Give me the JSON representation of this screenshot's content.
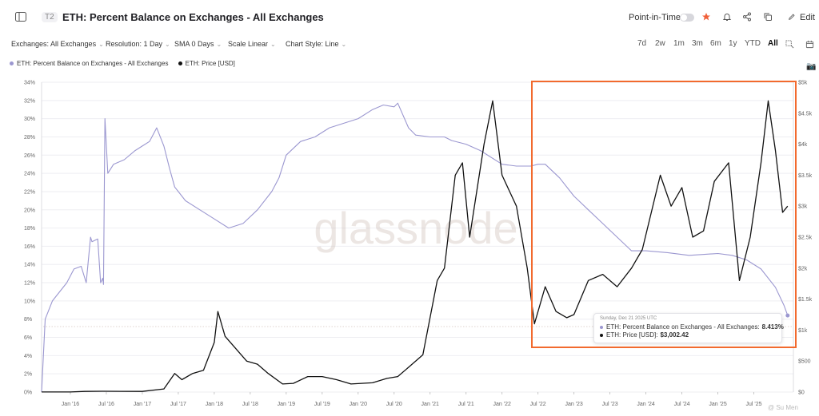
{
  "header": {
    "tier_tag": "T2",
    "title": "ETH: Percent Balance on Exchanges - All Exchanges",
    "point_in_time_label": "Point-in-Time",
    "edit_label": "Edit"
  },
  "filters": [
    {
      "label": "Exchanges: All Exchanges"
    },
    {
      "label": "Resolution: 1 Day"
    },
    {
      "label": "SMA 0 Days"
    },
    {
      "label": "Scale Linear"
    },
    {
      "label": "Chart Style: Line"
    }
  ],
  "ranges": [
    "7d",
    "2w",
    "1m",
    "3m",
    "6m",
    "1y",
    "YTD",
    "All"
  ],
  "active_range": "All",
  "watermark": "glassnode",
  "corner_watermark": "@ Su Men",
  "tooltip": {
    "date": "Sunday, Dec 21 2025 UTC",
    "row1_label": "ETH: Percent Balance on Exchanges - All Exchanges:",
    "row1_value": "8.413%",
    "row2_label": "ETH: Price [USD]:",
    "row2_value": "$3,002.42"
  },
  "colors": {
    "balance": "#9b97d0",
    "price": "#111111",
    "highlight": "#f26a2e",
    "star": "#f0603a"
  },
  "chart_data": {
    "type": "line",
    "legend_position": "top-left",
    "grid": "horizontal",
    "xlabels": [
      "Jan '16",
      "Jul '16",
      "Jan '17",
      "Jul '17",
      "Jan '18",
      "Jul '18",
      "Jan '19",
      "Jul '19",
      "Jan '20",
      "Jul '20",
      "Jan '21",
      "Jul '21",
      "Jan '22",
      "Jul '22",
      "Jan '23",
      "Jul '23",
      "Jan '24",
      "Jul '24",
      "Jan '25",
      "Jul '25"
    ],
    "xlim": [
      2015.6,
      2026.05
    ],
    "y_left": {
      "ticks": [
        "0%",
        "2%",
        "4%",
        "6%",
        "8%",
        "10%",
        "12%",
        "14%",
        "16%",
        "18%",
        "20%",
        "22%",
        "24%",
        "26%",
        "28%",
        "30%",
        "32%",
        "34%"
      ],
      "ylim": [
        0,
        34
      ]
    },
    "y_right": {
      "ticks": [
        "$0",
        "$500",
        "$1k",
        "$1.5k",
        "$2k",
        "$2.5k",
        "$3k",
        "$3.5k",
        "$4k",
        "$4.5k",
        "$5k"
      ],
      "ylim": [
        0,
        5000
      ]
    },
    "series": [
      {
        "name": "ETH: Percent Balance on Exchanges - All Exchanges",
        "axis": "left",
        "unit": "%",
        "x": [
          2015.6,
          2015.65,
          2015.75,
          2015.85,
          2015.95,
          2016.05,
          2016.15,
          2016.22,
          2016.28,
          2016.3,
          2016.38,
          2016.42,
          2016.45,
          2016.46,
          2016.48,
          2016.52,
          2016.56,
          2016.6,
          2016.75,
          2016.9,
          2017.0,
          2017.1,
          2017.2,
          2017.3,
          2017.38,
          2017.45,
          2017.5,
          2017.6,
          2017.8,
          2018.0,
          2018.2,
          2018.4,
          2018.6,
          2018.8,
          2018.9,
          2019.0,
          2019.2,
          2019.4,
          2019.6,
          2019.8,
          2020.0,
          2020.2,
          2020.35,
          2020.5,
          2020.55,
          2020.7,
          2020.8,
          2021.0,
          2021.2,
          2021.3,
          2021.5,
          2021.7,
          2022.0,
          2022.2,
          2022.4,
          2022.5,
          2022.6,
          2022.8,
          2023.0,
          2023.2,
          2023.4,
          2023.6,
          2023.8,
          2024.0,
          2024.3,
          2024.6,
          2025.0,
          2025.2,
          2025.4,
          2025.6,
          2025.8,
          2025.92,
          2025.97
        ],
        "y": [
          0,
          8,
          10,
          11,
          12,
          13.5,
          13.8,
          12,
          17,
          16.5,
          16.8,
          12,
          12.5,
          11.8,
          30,
          24,
          24.5,
          25,
          25.5,
          26.5,
          27,
          27.5,
          29,
          27,
          24.5,
          22.5,
          22,
          21,
          20,
          19,
          18,
          18.5,
          20,
          22,
          23.5,
          26,
          27.5,
          28,
          29,
          29.5,
          30,
          31,
          31.5,
          31.3,
          31.7,
          29,
          28.2,
          28,
          28,
          27.6,
          27.2,
          26.5,
          25,
          24.8,
          24.8,
          25,
          25,
          23.5,
          21.5,
          20,
          18.5,
          17,
          15.5,
          15.5,
          15.3,
          15,
          15.2,
          15,
          14.5,
          13.5,
          11.5,
          9.5,
          8.4
        ]
      },
      {
        "name": "ETH: Price [USD]",
        "axis": "right",
        "unit": "USD",
        "x": [
          2015.6,
          2016.0,
          2016.2,
          2016.45,
          2016.7,
          2017.0,
          2017.3,
          2017.45,
          2017.55,
          2017.7,
          2017.85,
          2018.0,
          2018.05,
          2018.15,
          2018.3,
          2018.45,
          2018.6,
          2018.75,
          2018.95,
          2019.1,
          2019.3,
          2019.5,
          2019.7,
          2019.9,
          2020.2,
          2020.4,
          2020.55,
          2020.7,
          2020.9,
          2021.1,
          2021.2,
          2021.35,
          2021.45,
          2021.55,
          2021.75,
          2021.87,
          2022.0,
          2022.2,
          2022.35,
          2022.45,
          2022.6,
          2022.75,
          2022.9,
          2023.0,
          2023.2,
          2023.4,
          2023.6,
          2023.8,
          2023.95,
          2024.2,
          2024.35,
          2024.5,
          2024.65,
          2024.8,
          2024.95,
          2025.15,
          2025.3,
          2025.45,
          2025.6,
          2025.7,
          2025.8,
          2025.9,
          2025.97
        ],
        "y": [
          1,
          1,
          10,
          13,
          12,
          10,
          50,
          300,
          200,
          300,
          350,
          800,
          1300,
          900,
          700,
          500,
          450,
          300,
          130,
          140,
          250,
          250,
          200,
          130,
          150,
          220,
          250,
          400,
          600,
          1800,
          2000,
          3500,
          3700,
          2500,
          4000,
          4700,
          3500,
          3000,
          2000,
          1100,
          1700,
          1300,
          1200,
          1250,
          1800,
          1900,
          1700,
          2000,
          2300,
          3500,
          3000,
          3300,
          2500,
          2600,
          3400,
          3700,
          1800,
          2500,
          3700,
          4700,
          3900,
          2900,
          3000
        ]
      }
    ]
  }
}
